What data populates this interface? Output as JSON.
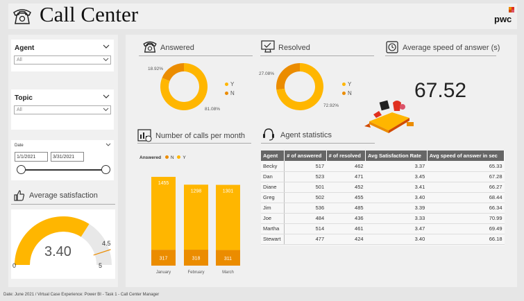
{
  "header": {
    "title": "Call Center",
    "logo": "pwc"
  },
  "slicers": {
    "agent": {
      "label": "Agent",
      "value": "All"
    },
    "topic": {
      "label": "Topic",
      "value": "All"
    },
    "date": {
      "label": "Date",
      "start": "1/1/2021",
      "end": "3/31/2021"
    }
  },
  "satisfaction": {
    "title": "Average satisfaction",
    "value": "3.40",
    "target": "4.5",
    "min": "0",
    "max": "5",
    "fraction": 0.68
  },
  "answered": {
    "title": "Answered",
    "labels": {
      "n": "18.92%",
      "y": "81.08%"
    },
    "legend": [
      "Y",
      "N"
    ],
    "values": {
      "y": 81.08,
      "n": 18.92
    }
  },
  "resolved": {
    "title": "Resolved",
    "labels": {
      "n": "27.08%",
      "y": "72.92%"
    },
    "legend": [
      "Y",
      "N"
    ],
    "values": {
      "y": 72.92,
      "n": 27.08
    }
  },
  "speed": {
    "title": "Average speed of answer (s)",
    "value": "67.52"
  },
  "calls_chart": {
    "title": "Number of calls per month",
    "legend_title": "Answered",
    "legend": [
      "N",
      "Y"
    ],
    "months": [
      "January",
      "February",
      "March"
    ]
  },
  "chart_data": {
    "type": "bar",
    "stacked": true,
    "categories": [
      "January",
      "February",
      "March"
    ],
    "series": [
      {
        "name": "N",
        "values": [
          317,
          318,
          311
        ]
      },
      {
        "name": "Y",
        "values": [
          1455,
          1298,
          1301
        ]
      }
    ]
  },
  "agent_stats": {
    "title": "Agent statistics",
    "columns": [
      "Agent",
      "# of answered",
      "# of resolved",
      "Avg Satisfaction Rate",
      "Avg speed of answer in sec"
    ],
    "rows": [
      [
        "Becky",
        "517",
        "462",
        "3.37",
        "65.33"
      ],
      [
        "Dan",
        "523",
        "471",
        "3.45",
        "67.28"
      ],
      [
        "Diane",
        "501",
        "452",
        "3.41",
        "66.27"
      ],
      [
        "Greg",
        "502",
        "455",
        "3.40",
        "68.44"
      ],
      [
        "Jim",
        "536",
        "485",
        "3.39",
        "66.34"
      ],
      [
        "Joe",
        "484",
        "436",
        "3.33",
        "70.99"
      ],
      [
        "Martha",
        "514",
        "461",
        "3.47",
        "69.49"
      ],
      [
        "Stewart",
        "477",
        "424",
        "3.40",
        "66.18"
      ]
    ]
  },
  "footer": "Date: June 2021 / Virtual Case Experience: Power BI - Task 1 - Call Center Manager",
  "colors": {
    "y": "#FFB600",
    "n": "#EB8C00",
    "gauge_bg": "#e8e8e8"
  }
}
